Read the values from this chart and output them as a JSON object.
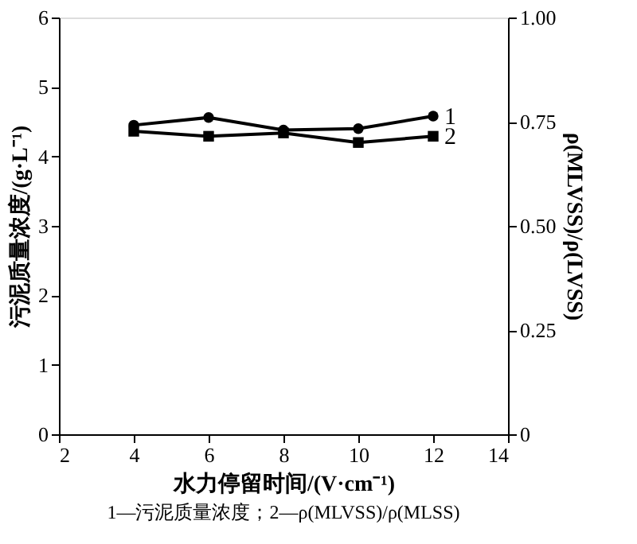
{
  "chart_data": {
    "type": "line",
    "xlabel": "水力停留时间/(V·cm⁻¹)",
    "ylabel": "污泥质量浓度/(g·L⁻¹)",
    "y2label": "ρ(MLVSS)/ρ(LVSS)",
    "x": [
      4,
      6,
      8,
      10,
      12
    ],
    "series": [
      {
        "name": "1",
        "color": "#000000",
        "marker": "circle",
        "values": [
          4.45,
          4.56,
          4.38,
          4.4,
          4.58
        ]
      },
      {
        "name": "2",
        "color": "#000000",
        "marker": "square",
        "axis": "y2",
        "values": [
          0.727,
          0.715,
          0.723,
          0.7,
          0.715
        ]
      }
    ],
    "xlim": [
      2,
      14
    ],
    "xticks": [
      2,
      4,
      6,
      8,
      10,
      12,
      14
    ],
    "ylim": [
      0,
      6
    ],
    "yticks": [
      0,
      1,
      2,
      3,
      4,
      5,
      6
    ],
    "y2lim": [
      0,
      1
    ],
    "y2ticks": [
      0,
      {
        "value": 0.25,
        "label": "0.25"
      },
      {
        "value": 0.5,
        "label": "0.50"
      },
      {
        "value": 0.75,
        "label": "0.75"
      },
      {
        "value": 1,
        "label": "1.00"
      }
    ],
    "grid": false,
    "line_style": "solid",
    "annotations": [
      "1—污泥质量浓度；2—ρ(MLVSS)/ρ(MLSS)"
    ]
  }
}
